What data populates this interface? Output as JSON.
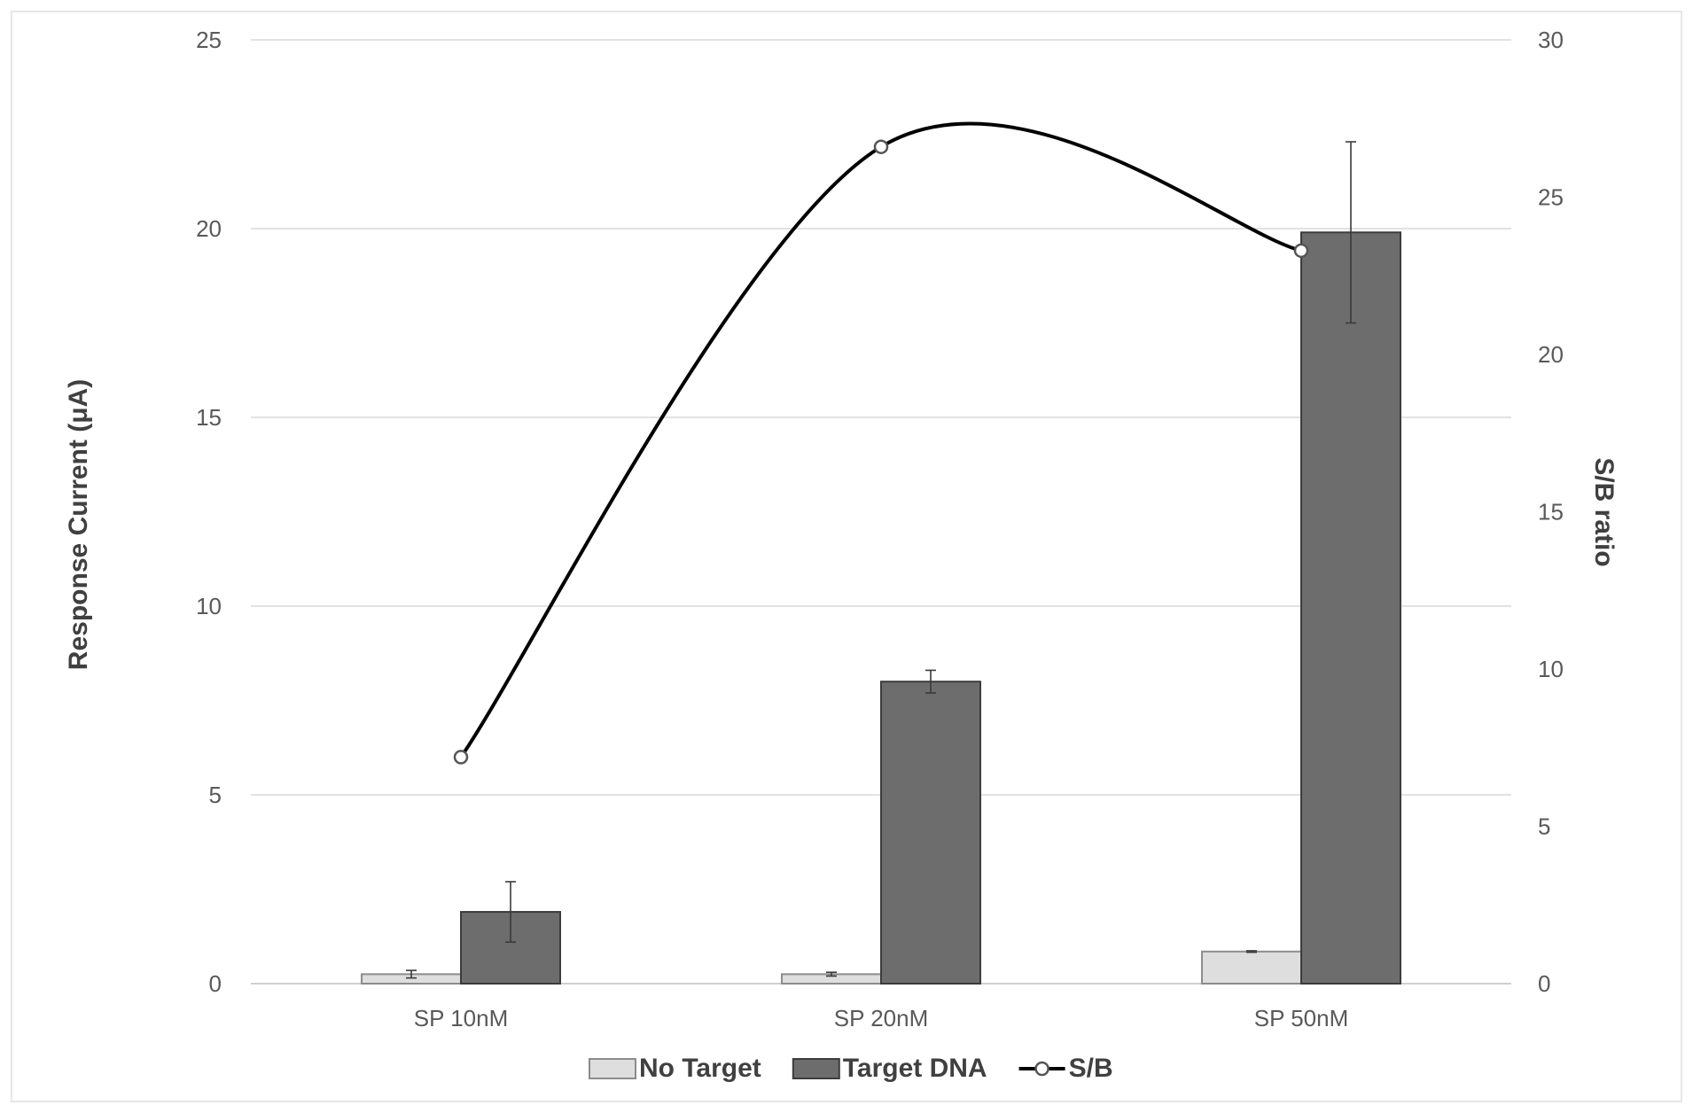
{
  "chart_data": {
    "type": "bar",
    "categories": [
      "SP 10nM",
      "SP 20nM",
      "SP 50nM"
    ],
    "series": [
      {
        "name": "No Target",
        "type": "bar",
        "axis": "left",
        "values": [
          0.25,
          0.25,
          0.85
        ],
        "error": [
          0.1,
          0.05,
          0.02
        ],
        "color": "#dedede"
      },
      {
        "name": "Target DNA",
        "type": "bar",
        "axis": "left",
        "values": [
          1.9,
          8.0,
          19.9
        ],
        "error": [
          0.8,
          0.3,
          2.4
        ],
        "color": "#6d6d6d"
      },
      {
        "name": "S/B",
        "type": "line",
        "axis": "right",
        "smooth": true,
        "marker": "open-circle",
        "values": [
          7.2,
          26.6,
          23.3
        ],
        "color": "#000000"
      }
    ],
    "ylabel": "Response Current (μA)",
    "y2label": "S/B ratio",
    "ylim": [
      0,
      25
    ],
    "y2lim": [
      0,
      30
    ],
    "yticks": [
      "0",
      "5",
      "10",
      "15",
      "20",
      "25"
    ],
    "y2ticks": [
      "0",
      "5",
      "10",
      "15",
      "20",
      "25",
      "30"
    ],
    "grid": true,
    "legend_position": "bottom"
  }
}
